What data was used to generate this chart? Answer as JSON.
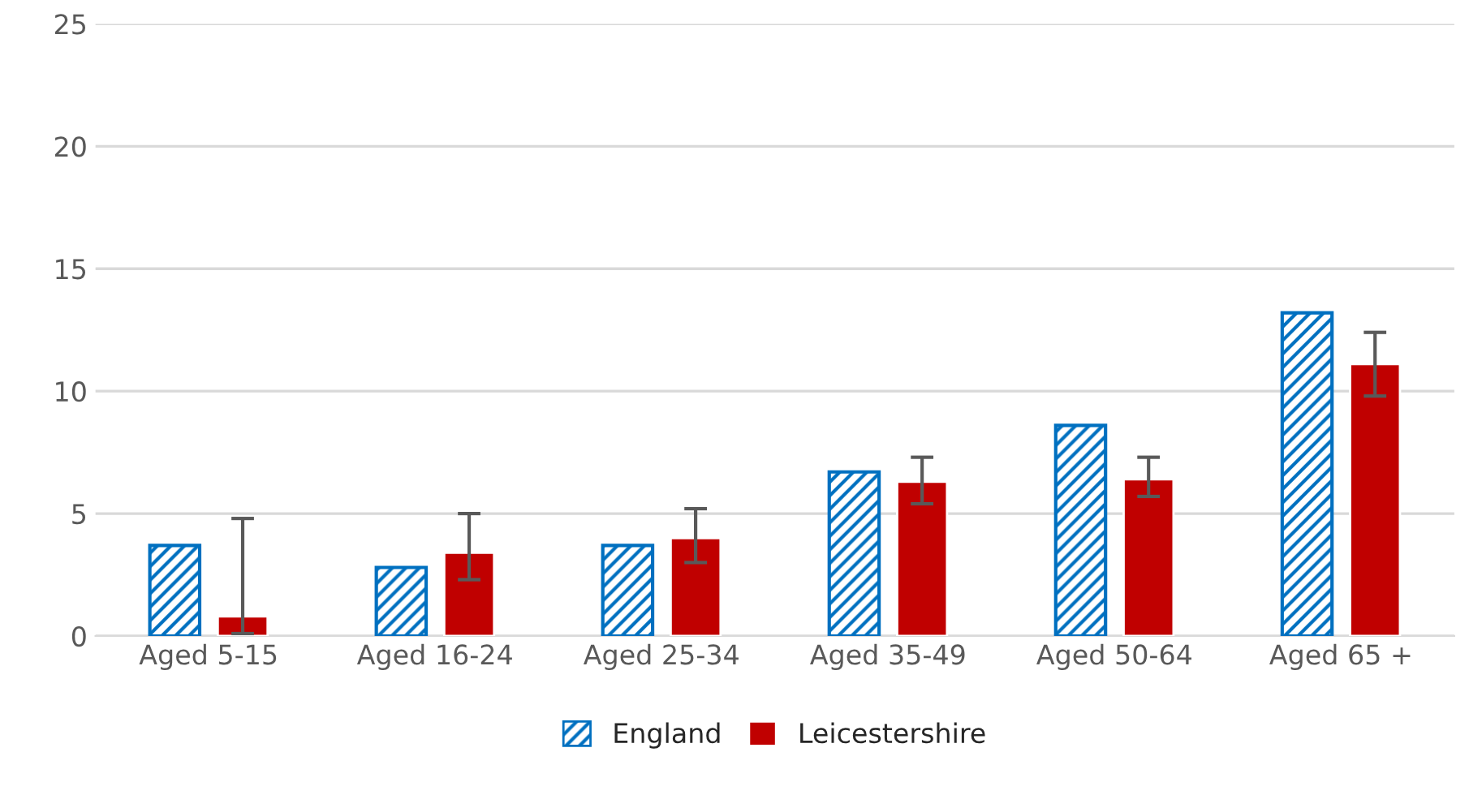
{
  "chart_data": {
    "type": "bar",
    "categories": [
      "Aged 5-15",
      "Aged 16-24",
      "Aged 25-34",
      "Aged 35-49",
      "Aged 50-64",
      "Aged 65 +"
    ],
    "series": [
      {
        "name": "England",
        "color": "#0070c0",
        "values": [
          3.7,
          2.8,
          3.7,
          6.7,
          8.6,
          13.2
        ]
      },
      {
        "name": "Leicestershire",
        "color": "#c00000",
        "values": [
          0.8,
          3.4,
          4.0,
          6.3,
          6.4,
          11.1
        ],
        "errors": [
          [
            0.1,
            4.8
          ],
          [
            2.3,
            5.0
          ],
          [
            3.0,
            5.2
          ],
          [
            5.4,
            7.3
          ],
          [
            5.7,
            7.3
          ],
          [
            9.8,
            12.4
          ]
        ]
      }
    ],
    "ylim": [
      0,
      25
    ],
    "yticks": [
      0,
      5,
      10,
      15,
      20,
      25
    ],
    "grid": "y",
    "legend": "bottom"
  }
}
